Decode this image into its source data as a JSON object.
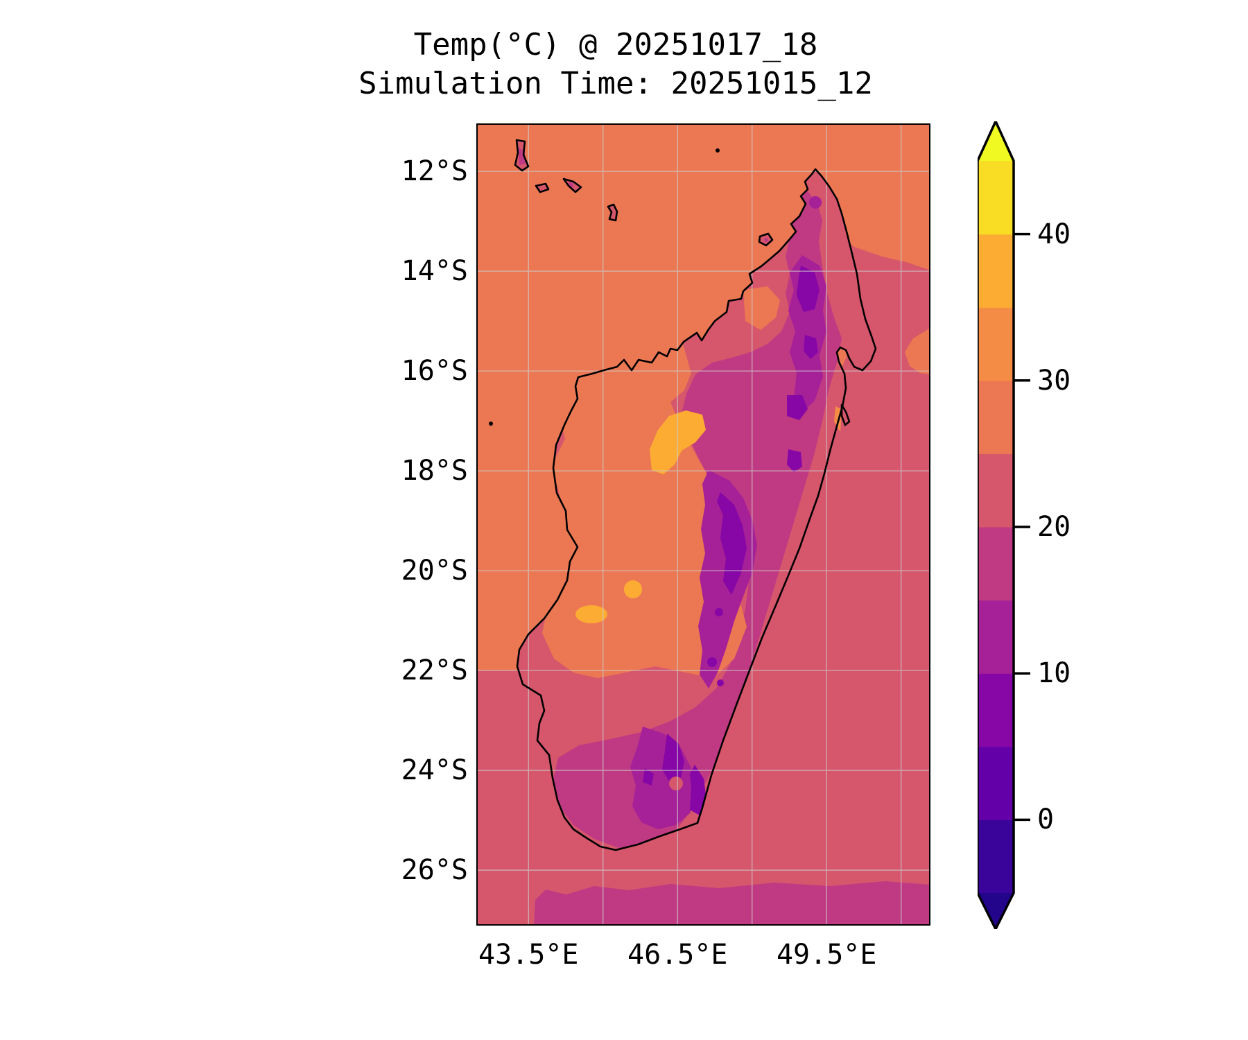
{
  "header": {
    "title": "Temp(°C) @ 20251017_18",
    "subtitle": "Simulation Time: 20251015_12"
  },
  "chart_data": {
    "type": "filled_contour_map",
    "title": "Temp(°C) @ 20251017_18",
    "subtitle": "Simulation Time: 20251015_12",
    "variable": "Temp(°C)",
    "valid_time": "20251017_18",
    "simulation_time": "20251015_12",
    "region_depicted": "Madagascar and Comoros, Mozambique Channel / Indian Ocean",
    "lon_range": [
      42.45,
      51.59
    ],
    "lat_range_south": [
      11.04,
      27.11
    ],
    "grid_lons": [
      43.5,
      45.0,
      46.5,
      48.0,
      49.5,
      51.0
    ],
    "grid_lats_south": [
      12,
      14,
      16,
      18,
      20,
      22,
      24,
      26
    ],
    "xticks": [
      {
        "lon": 43.5,
        "label": "43.5°E"
      },
      {
        "lon": 46.5,
        "label": "46.5°E"
      },
      {
        "lon": 49.5,
        "label": "49.5°E"
      }
    ],
    "yticks": [
      {
        "lat_south": 12,
        "label": "12°S"
      },
      {
        "lat_south": 14,
        "label": "14°S"
      },
      {
        "lat_south": 16,
        "label": "16°S"
      },
      {
        "lat_south": 18,
        "label": "18°S"
      },
      {
        "lat_south": 20,
        "label": "20°S"
      },
      {
        "lat_south": 22,
        "label": "22°S"
      },
      {
        "lat_south": 24,
        "label": "24°S"
      },
      {
        "lat_south": 26,
        "label": "26°S"
      }
    ],
    "colorbar": {
      "orientation": "vertical",
      "position": "right",
      "levels": [
        -5,
        0,
        5,
        10,
        15,
        20,
        25,
        30,
        35,
        40,
        45
      ],
      "extend": "both",
      "ticks": [
        {
          "value": 40,
          "label": "40"
        },
        {
          "value": 30,
          "label": "30"
        },
        {
          "value": 20,
          "label": "20"
        },
        {
          "value": 10,
          "label": "10"
        },
        {
          "value": 0,
          "label": "0"
        }
      ],
      "band_colors": [
        "#23058c",
        "#3a049a",
        "#6300a7",
        "#8606a6",
        "#a62098",
        "#c03a83",
        "#d6566c",
        "#ec7853",
        "#f58c46",
        "#fdac33",
        "#f9dc24",
        "#f0f921"
      ],
      "band_ranges": [
        "<-5",
        "-5-0",
        "0-5",
        "5-10",
        "10-15",
        "15-20",
        "20-25",
        "25-30",
        "30-35",
        "35-40",
        "40-45",
        ">45"
      ]
    },
    "field_summary": [
      {
        "area": "ocean north and west of Madagascar (north of ~22°S)",
        "temp_band": "25-30"
      },
      {
        "area": "ocean east and south of Madagascar",
        "temp_band": "20-25"
      },
      {
        "area": "ocean strip along bottom edge (~26.5°S southward)",
        "temp_band": "15-20"
      },
      {
        "area": "western lowlands of Madagascar (~16-22°S)",
        "temp_band": "25-30"
      },
      {
        "area": "hot spots in west interior (~17°S and ~20-21°S)",
        "temp_band": "35-40"
      },
      {
        "area": "eastern half and southern Madagascar",
        "temp_band": "15-25"
      },
      {
        "area": "central/northern highlands patches",
        "temp_band": "5-15"
      },
      {
        "area": "Comoros islands (rose with magenta centers)",
        "temp_band": "15-25"
      }
    ],
    "style": {
      "coastline_color": "#000000",
      "gridline_color": "#cccccc",
      "background_color": "#ffffff"
    }
  }
}
